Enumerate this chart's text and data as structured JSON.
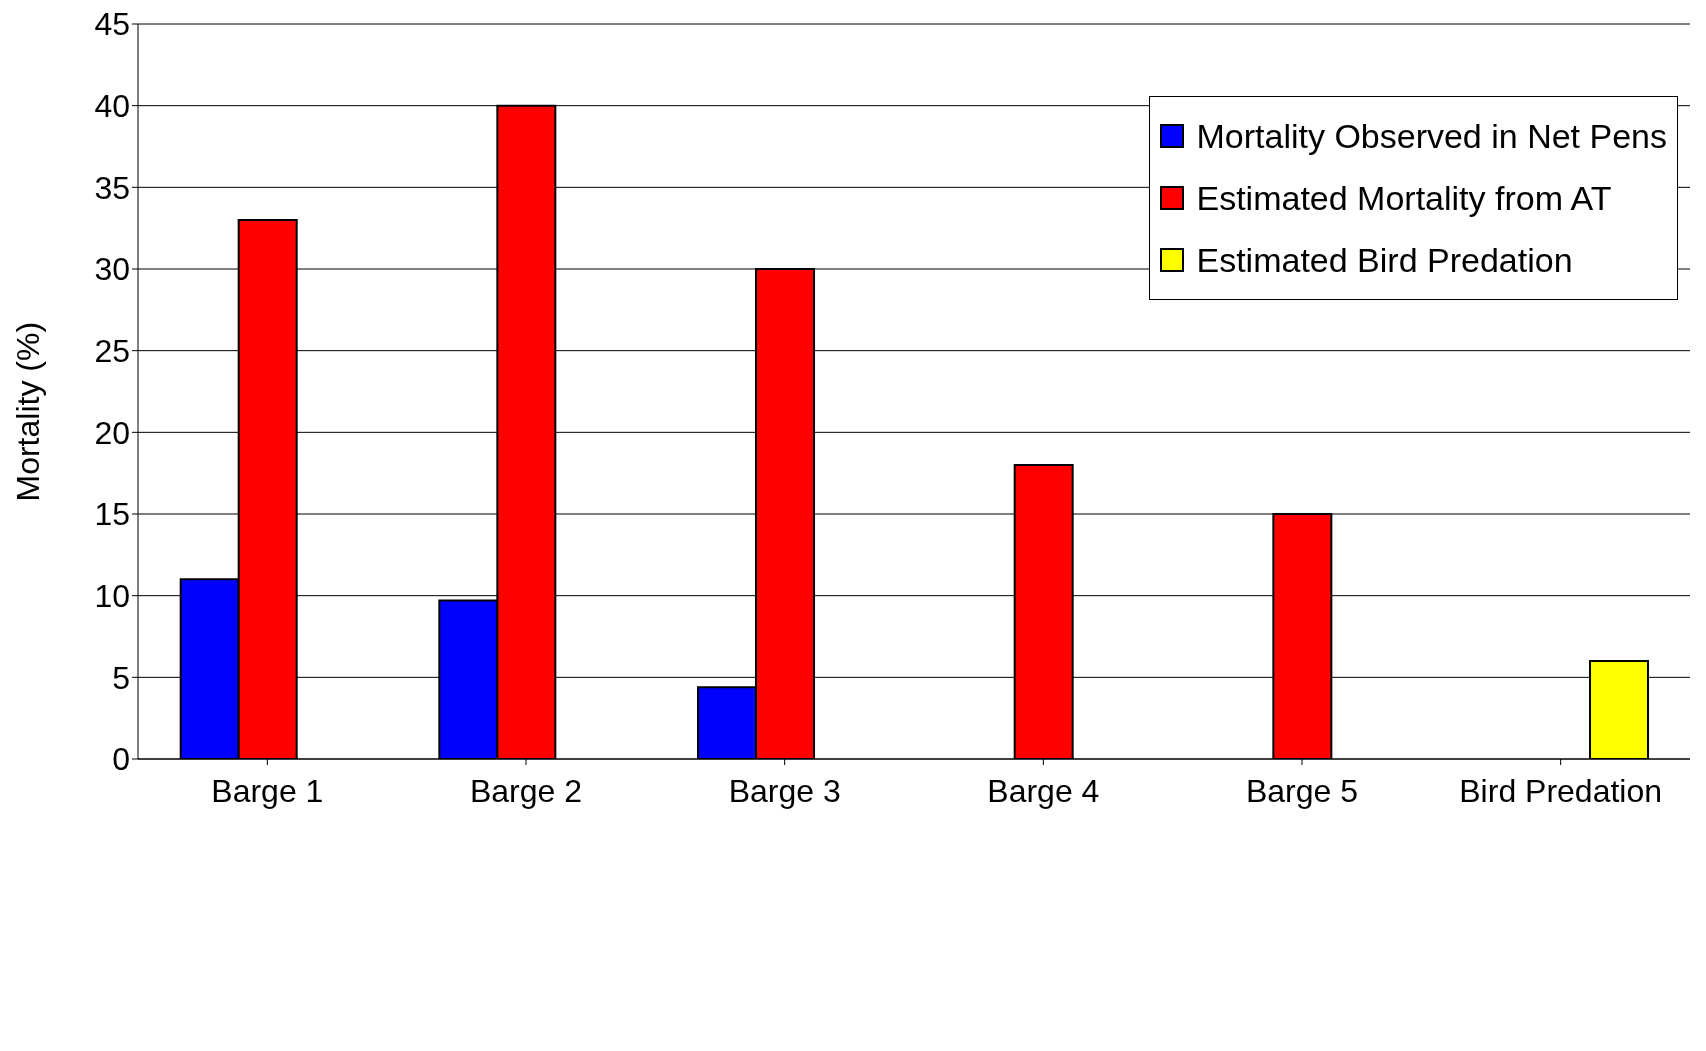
{
  "chart_data": {
    "type": "bar",
    "ylabel": "Mortality (%)",
    "categories": [
      "Barge 1",
      "Barge 2",
      "Barge 3",
      "Barge 4",
      "Barge 5",
      "Bird Predation"
    ],
    "series": [
      {
        "name": "Mortality Observed in Net Pens",
        "color": "#0000ff",
        "values": [
          11,
          9.7,
          4.4,
          null,
          null,
          null
        ]
      },
      {
        "name": "Estimated Mortality from AT",
        "color": "#ff0000",
        "values": [
          33,
          40,
          30,
          18,
          15,
          null
        ]
      },
      {
        "name": "Estimated Bird Predation",
        "color": "#ffff00",
        "values": [
          null,
          null,
          null,
          null,
          null,
          6
        ]
      }
    ],
    "ylim": [
      0,
      45
    ],
    "yticks": [
      0,
      5,
      10,
      15,
      20,
      25,
      30,
      35,
      40,
      45
    ],
    "grid": "y",
    "legend": "top right"
  }
}
